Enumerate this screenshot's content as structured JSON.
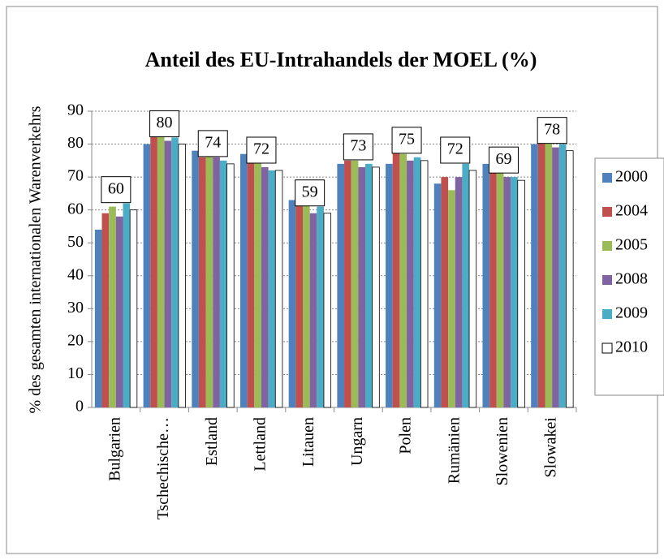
{
  "chart_data": {
    "type": "bar",
    "title": "Anteil des EU-Intrahandels der MOEL (%)",
    "y_label": "% des gesamten internationalen Warenverkehrs",
    "categories": [
      "Bulgarien",
      "Tschechische…",
      "Estland",
      "Lettland",
      "Litauen",
      "Ungarn",
      "Polen",
      "Rumänien",
      "Slowenien",
      "Slowakei"
    ],
    "series": [
      {
        "name": "2000",
        "color": "#4f81bd",
        "values": [
          54,
          80,
          78,
          77,
          63,
          74,
          74,
          68,
          74,
          80
        ]
      },
      {
        "name": "2004",
        "color": "#c0504d",
        "values": [
          59,
          84,
          76,
          76,
          65,
          75,
          78,
          70,
          75,
          83
        ]
      },
      {
        "name": "2005",
        "color": "#9bbb59",
        "values": [
          61,
          83,
          77,
          76,
          62,
          75,
          77,
          66,
          74,
          82
        ]
      },
      {
        "name": "2008",
        "color": "#8064a2",
        "values": [
          58,
          81,
          76,
          73,
          59,
          73,
          75,
          70,
          70,
          79
        ]
      },
      {
        "name": "2009",
        "color": "#4bacc6",
        "values": [
          62,
          82,
          75,
          72,
          61,
          74,
          76,
          74,
          70,
          80
        ]
      },
      {
        "name": "2010",
        "color": "#ffffff",
        "values": [
          60,
          80,
          74,
          72,
          59,
          73,
          75,
          72,
          69,
          78
        ]
      }
    ],
    "labeled_series": 5,
    "ylim": [
      0,
      90
    ],
    "yticks": [
      0,
      10,
      20,
      30,
      40,
      50,
      60,
      70,
      80,
      90
    ],
    "grid": true,
    "legend": "right"
  }
}
